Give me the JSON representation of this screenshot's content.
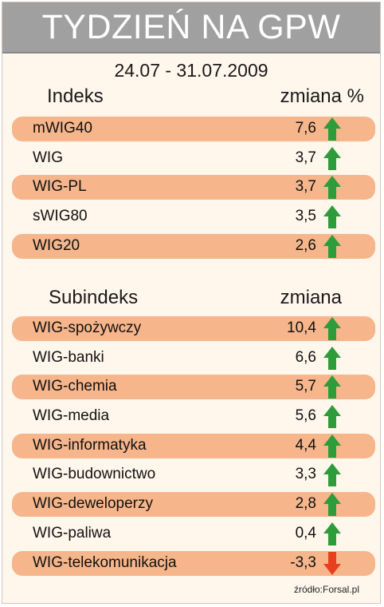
{
  "title": "TYDZIEŃ NA GPW",
  "date_range": "24.07 - 31.07.2009",
  "indexes": {
    "header_left": "Indeks",
    "header_right": "zmiana %",
    "rows": [
      {
        "name": "mWIG40",
        "value": "7,6",
        "direction": "up"
      },
      {
        "name": "WIG",
        "value": "3,7",
        "direction": "up"
      },
      {
        "name": "WIG-PL",
        "value": "3,7",
        "direction": "up"
      },
      {
        "name": "sWIG80",
        "value": "3,5",
        "direction": "up"
      },
      {
        "name": "WIG20",
        "value": "2,6",
        "direction": "up"
      }
    ]
  },
  "subindexes": {
    "header_left": "Subindeks",
    "header_right": "zmiana",
    "rows": [
      {
        "name": "WIG-spożywczy",
        "value": "10,4",
        "direction": "up"
      },
      {
        "name": "WIG-banki",
        "value": "6,6",
        "direction": "up"
      },
      {
        "name": "WIG-chemia",
        "value": "5,7",
        "direction": "up"
      },
      {
        "name": "WIG-media",
        "value": "5,6",
        "direction": "up"
      },
      {
        "name": "WIG-informatyka",
        "value": "4,4",
        "direction": "up"
      },
      {
        "name": "WIG-budownictwo",
        "value": "3,3",
        "direction": "up"
      },
      {
        "name": "WIG-deweloperzy",
        "value": "2,8",
        "direction": "up"
      },
      {
        "name": "WIG-paliwa",
        "value": "0,4",
        "direction": "up"
      },
      {
        "name": "WIG-telekomunikacja",
        "value": "-3,3",
        "direction": "down"
      }
    ]
  },
  "source": "źródło:Forsal.pl",
  "colors": {
    "banner": "#a0a0a0",
    "row_shade": "#f6b58a",
    "up_arrow": "#2e9c3a",
    "down_arrow": "#e8401f"
  }
}
